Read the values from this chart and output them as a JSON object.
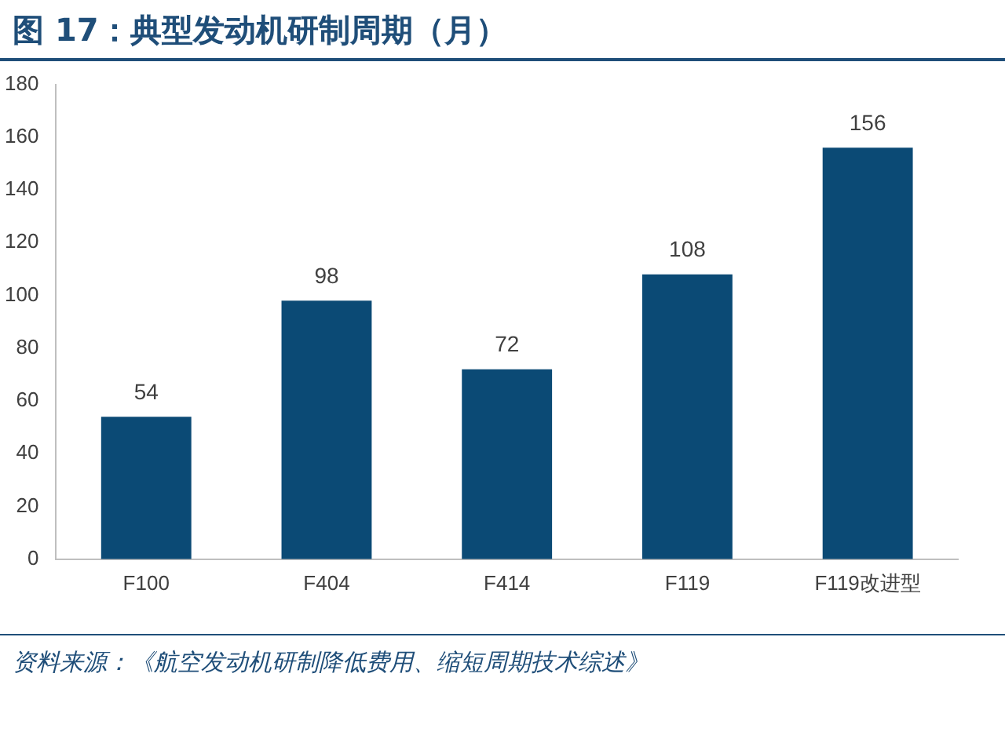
{
  "chart_data": {
    "type": "bar",
    "title": "图 17：典型发动机研制周期（月）",
    "categories": [
      "F100",
      "F404",
      "F414",
      "F119",
      "F119改进型"
    ],
    "values": [
      54,
      98,
      72,
      108,
      156
    ],
    "color": "#0b4a75",
    "ylim": [
      0,
      180
    ],
    "yticks": [
      0,
      20,
      40,
      60,
      80,
      100,
      120,
      140,
      160,
      180
    ],
    "grid": false,
    "data_labels": true,
    "annotations": [
      "资料来源：《航空发动机研制降低费用、缩短周期技术综述》"
    ]
  }
}
